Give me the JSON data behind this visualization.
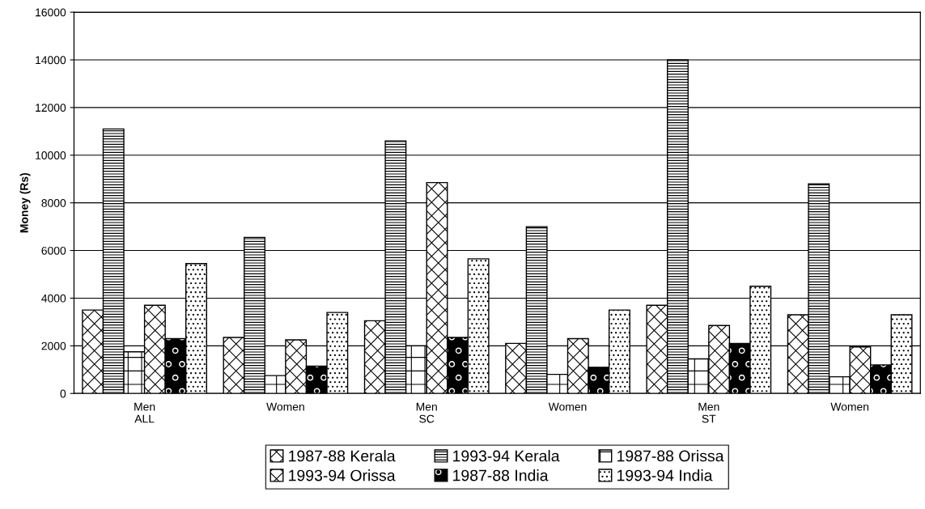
{
  "chart_data": {
    "type": "bar",
    "ylabel": "Money (Rs)",
    "categories": [
      "Men\nALL",
      "Women",
      "Men\nSC",
      "Women",
      "Men\nST",
      "Women"
    ],
    "series": [
      {
        "name": "1987-88 Kerala",
        "color": "#000000",
        "values": [
          3500,
          2350,
          3050,
          2100,
          3700,
          3300
        ]
      },
      {
        "name": "1993-94 Kerala",
        "color": "#000000",
        "values": [
          11100,
          6550,
          10600,
          7000,
          14000,
          8800
        ]
      },
      {
        "name": "1987-88 Orissa",
        "color": "#000000",
        "values": [
          1750,
          750,
          2000,
          800,
          1450,
          700
        ]
      },
      {
        "name": "1993-94 Orissa",
        "color": "#000000",
        "values": [
          3700,
          2250,
          8850,
          2300,
          2850,
          1950
        ]
      },
      {
        "name": "1987-88 India",
        "color": "#000000",
        "values": [
          2300,
          1150,
          2350,
          1100,
          2100,
          1200
        ]
      },
      {
        "name": "1993-94 India",
        "color": "#000000",
        "values": [
          5450,
          3400,
          5650,
          3500,
          4500,
          3300
        ]
      }
    ],
    "ylim": [
      0,
      16000
    ],
    "yticks": [
      0,
      2000,
      4000,
      6000,
      8000,
      10000,
      12000,
      14000,
      16000
    ],
    "grid": "y",
    "legend": "bottom"
  }
}
